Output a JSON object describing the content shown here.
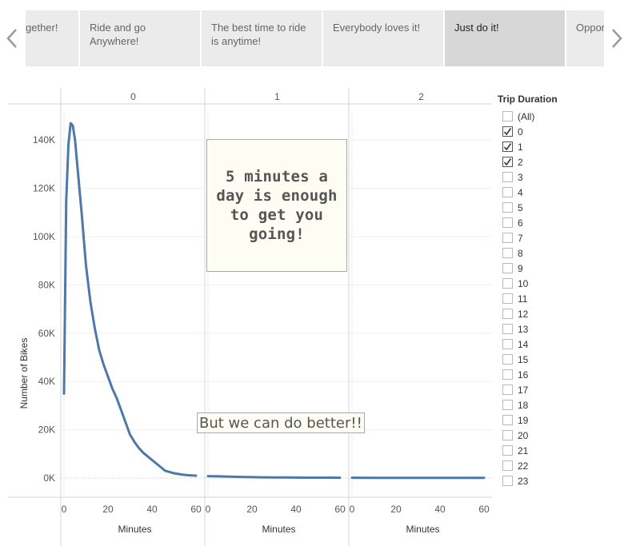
{
  "story": {
    "points": [
      {
        "label": "gether!",
        "active": false
      },
      {
        "label": "Ride and go Anywhere!",
        "active": false
      },
      {
        "label": "The best time to ride is anytime!",
        "active": false
      },
      {
        "label": "Everybody loves it!",
        "active": false
      },
      {
        "label": "Just do it!",
        "active": true
      },
      {
        "label": "Oppor",
        "active": false
      }
    ],
    "prev_icon": "chevron-left-icon",
    "next_icon": "chevron-right-icon"
  },
  "chart_data": {
    "type": "line",
    "facet_field": "Trip Duration",
    "panels": [
      "0",
      "1",
      "2"
    ],
    "xlabel": "Minutes",
    "ylabel": "Number of Bikes",
    "x_ticks": [
      "0",
      "20",
      "40",
      "60"
    ],
    "y_ticks": [
      "0K",
      "20K",
      "40K",
      "60K",
      "80K",
      "100K",
      "120K",
      "140K"
    ],
    "ylim": [
      0,
      150000
    ],
    "xlim": [
      -1,
      62
    ],
    "color": "#4e79a7",
    "series": [
      {
        "panel": "0",
        "x": [
          0,
          1,
          2,
          3,
          4,
          5,
          6,
          8,
          10,
          12,
          14,
          16,
          18,
          20,
          22,
          24,
          26,
          28,
          30,
          32,
          34,
          36,
          38,
          40,
          42,
          44,
          46,
          48,
          50,
          52,
          54,
          56,
          58,
          60
        ],
        "y": [
          35000,
          115000,
          138000,
          147000,
          146000,
          140000,
          130000,
          110000,
          88000,
          73000,
          62000,
          53000,
          47000,
          42000,
          37000,
          33000,
          28000,
          23000,
          18000,
          15000,
          12500,
          10500,
          9000,
          7500,
          6000,
          4500,
          3000,
          2500,
          2000,
          1700,
          1400,
          1200,
          1100,
          1000
        ]
      },
      {
        "panel": "1",
        "x": [
          0,
          5,
          10,
          15,
          20,
          25,
          30,
          35,
          40,
          45,
          50,
          55,
          60
        ],
        "y": [
          800,
          700,
          550,
          450,
          350,
          300,
          250,
          220,
          200,
          180,
          160,
          150,
          140
        ]
      },
      {
        "panel": "2",
        "x": [
          0,
          10,
          20,
          30,
          40,
          50,
          60
        ],
        "y": [
          120,
          110,
          100,
          95,
          90,
          85,
          80
        ]
      }
    ],
    "annotations": [
      "5 minutes a day is enough to get you going!",
      "But we can do better!!"
    ]
  },
  "filter": {
    "title": "Trip Duration",
    "items": [
      {
        "label": "(All)",
        "checked": false
      },
      {
        "label": "0",
        "checked": true
      },
      {
        "label": "1",
        "checked": true
      },
      {
        "label": "2",
        "checked": true
      },
      {
        "label": "3",
        "checked": false
      },
      {
        "label": "4",
        "checked": false
      },
      {
        "label": "5",
        "checked": false
      },
      {
        "label": "6",
        "checked": false
      },
      {
        "label": "7",
        "checked": false
      },
      {
        "label": "8",
        "checked": false
      },
      {
        "label": "9",
        "checked": false
      },
      {
        "label": "10",
        "checked": false
      },
      {
        "label": "11",
        "checked": false
      },
      {
        "label": "12",
        "checked": false
      },
      {
        "label": "13",
        "checked": false
      },
      {
        "label": "14",
        "checked": false
      },
      {
        "label": "15",
        "checked": false
      },
      {
        "label": "16",
        "checked": false
      },
      {
        "label": "17",
        "checked": false
      },
      {
        "label": "18",
        "checked": false
      },
      {
        "label": "19",
        "checked": false
      },
      {
        "label": "20",
        "checked": false
      },
      {
        "label": "21",
        "checked": false
      },
      {
        "label": "22",
        "checked": false
      },
      {
        "label": "23",
        "checked": false
      }
    ]
  }
}
